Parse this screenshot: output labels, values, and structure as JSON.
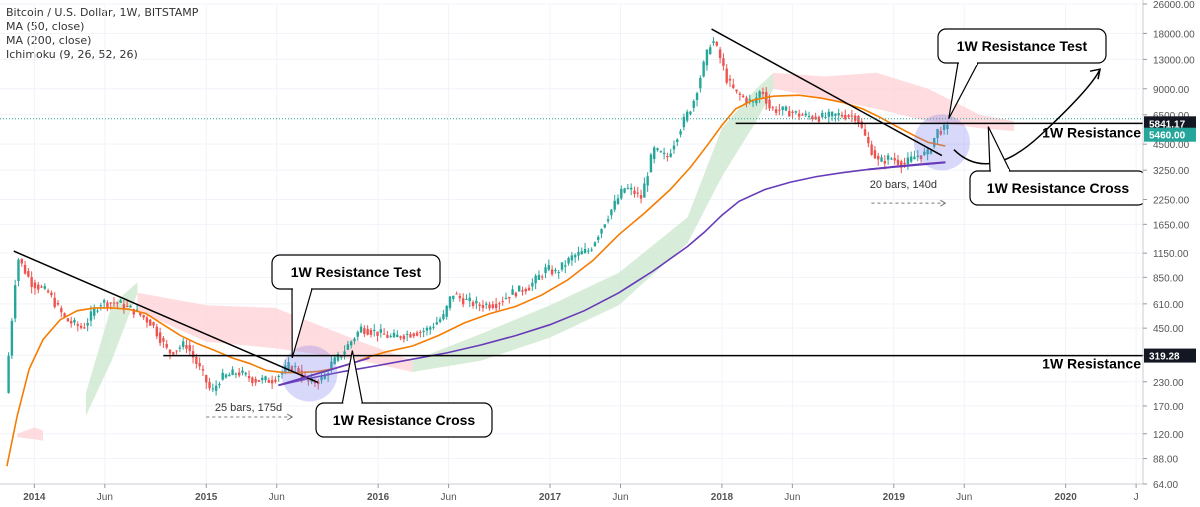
{
  "header": {
    "symbol_line": "Bitcoin / U.S. Dollar, 1W, BITSTAMP",
    "indicators": [
      "MA (50, close)",
      "MA (200, close)",
      "Ichimoku (9, 26, 52, 26)"
    ]
  },
  "colors": {
    "up": "#26a69a",
    "down": "#ef5350",
    "ma50": "#f57c00",
    "ma200": "#673ab7",
    "cloud_bull": "#c8e6c9",
    "cloud_bear": "#ffcdd2",
    "trendline": "#000000",
    "price_tag": "#26a69a",
    "highlight": "#7e7ef0"
  },
  "chart_data": {
    "type": "candlestick",
    "title": "Bitcoin / U.S. Dollar, 1W, BITSTAMP",
    "x_axis": {
      "start": 2013.8,
      "end": 2020.45,
      "ticks": [
        {
          "x": 2014.0,
          "label": "2014",
          "bold": true
        },
        {
          "x": 2014.41,
          "label": "Jun",
          "bold": false
        },
        {
          "x": 2015.0,
          "label": "2015",
          "bold": true
        },
        {
          "x": 2015.41,
          "label": "Jun",
          "bold": false
        },
        {
          "x": 2016.0,
          "label": "2016",
          "bold": true
        },
        {
          "x": 2016.41,
          "label": "Jun",
          "bold": false
        },
        {
          "x": 2017.0,
          "label": "2017",
          "bold": true
        },
        {
          "x": 2017.41,
          "label": "Jun",
          "bold": false
        },
        {
          "x": 2018.0,
          "label": "2018",
          "bold": true
        },
        {
          "x": 2018.41,
          "label": "Jun",
          "bold": false
        },
        {
          "x": 2019.0,
          "label": "2019",
          "bold": true
        },
        {
          "x": 2019.41,
          "label": "Jun",
          "bold": false
        },
        {
          "x": 2020.0,
          "label": "2020",
          "bold": true
        },
        {
          "x": 2020.41,
          "label": "J",
          "bold": false
        }
      ]
    },
    "y_axis": {
      "scale": "log",
      "range": [
        64,
        26000
      ],
      "ticks": [
        {
          "v": 26000,
          "label": "26000.00"
        },
        {
          "v": 18000,
          "label": "18000.00"
        },
        {
          "v": 13000,
          "label": "13000.00"
        },
        {
          "v": 9000,
          "label": "9000.00"
        },
        {
          "v": 6500,
          "label": "6500.00"
        },
        {
          "v": 4500,
          "label": "4500.00"
        },
        {
          "v": 3250,
          "label": "3250.00"
        },
        {
          "v": 2250,
          "label": "2250.00"
        },
        {
          "v": 1650,
          "label": "1650.00"
        },
        {
          "v": 1150,
          "label": "1150.00"
        },
        {
          "v": 850,
          "label": "850.00"
        },
        {
          "v": 610,
          "label": "610.00"
        },
        {
          "v": 450,
          "label": "450.00"
        },
        {
          "v": 320,
          "label": "320.00"
        },
        {
          "v": 230,
          "label": "230.00"
        },
        {
          "v": 170,
          "label": "170.00"
        },
        {
          "v": 120,
          "label": "120.00"
        },
        {
          "v": 88,
          "label": "88.00"
        },
        {
          "v": 64,
          "label": "64.00"
        }
      ]
    },
    "price_path": [
      [
        2013.85,
        200
      ],
      [
        2013.92,
        1100
      ],
      [
        2014.0,
        800
      ],
      [
        2014.1,
        700
      ],
      [
        2014.2,
        500
      ],
      [
        2014.3,
        450
      ],
      [
        2014.4,
        620
      ],
      [
        2014.5,
        620
      ],
      [
        2014.6,
        560
      ],
      [
        2014.7,
        480
      ],
      [
        2014.8,
        330
      ],
      [
        2014.9,
        370
      ],
      [
        2015.0,
        250
      ],
      [
        2015.05,
        200
      ],
      [
        2015.1,
        240
      ],
      [
        2015.2,
        260
      ],
      [
        2015.3,
        235
      ],
      [
        2015.4,
        235
      ],
      [
        2015.5,
        280
      ],
      [
        2015.55,
        270
      ],
      [
        2015.6,
        230
      ],
      [
        2015.65,
        230
      ],
      [
        2015.7,
        240
      ],
      [
        2015.75,
        290
      ],
      [
        2015.8,
        320
      ],
      [
        2015.85,
        370
      ],
      [
        2015.92,
        450
      ],
      [
        2016.0,
        430
      ],
      [
        2016.1,
        400
      ],
      [
        2016.2,
        420
      ],
      [
        2016.3,
        440
      ],
      [
        2016.4,
        520
      ],
      [
        2016.45,
        700
      ],
      [
        2016.5,
        650
      ],
      [
        2016.6,
        600
      ],
      [
        2016.7,
        610
      ],
      [
        2016.8,
        700
      ],
      [
        2016.9,
        760
      ],
      [
        2017.0,
        950
      ],
      [
        2017.05,
        900
      ],
      [
        2017.15,
        1100
      ],
      [
        2017.25,
        1200
      ],
      [
        2017.35,
        1800
      ],
      [
        2017.45,
        2600
      ],
      [
        2017.5,
        2500
      ],
      [
        2017.55,
        2300
      ],
      [
        2017.62,
        4200
      ],
      [
        2017.7,
        3800
      ],
      [
        2017.78,
        5600
      ],
      [
        2017.85,
        7500
      ],
      [
        2017.9,
        11000
      ],
      [
        2017.96,
        17000
      ],
      [
        2018.0,
        14000
      ],
      [
        2018.05,
        10000
      ],
      [
        2018.1,
        8500
      ],
      [
        2018.2,
        7500
      ],
      [
        2018.25,
        9000
      ],
      [
        2018.3,
        7000
      ],
      [
        2018.4,
        6800
      ],
      [
        2018.5,
        6400
      ],
      [
        2018.6,
        6300
      ],
      [
        2018.7,
        6500
      ],
      [
        2018.8,
        6400
      ],
      [
        2018.87,
        4500
      ],
      [
        2018.93,
        3600
      ],
      [
        2019.0,
        3800
      ],
      [
        2019.08,
        3500
      ],
      [
        2019.15,
        3900
      ],
      [
        2019.22,
        4000
      ],
      [
        2019.27,
        5300
      ],
      [
        2019.32,
        5460
      ]
    ],
    "series": [
      {
        "name": "MA (50, close)",
        "color": "#f57c00",
        "points": [
          [
            2013.84,
            80
          ],
          [
            2013.9,
            150
          ],
          [
            2013.97,
            270
          ],
          [
            2014.05,
            390
          ],
          [
            2014.15,
            500
          ],
          [
            2014.25,
            560
          ],
          [
            2014.35,
            580
          ],
          [
            2014.45,
            580
          ],
          [
            2014.55,
            570
          ],
          [
            2014.65,
            540
          ],
          [
            2014.75,
            470
          ],
          [
            2014.85,
            410
          ],
          [
            2014.95,
            370
          ],
          [
            2015.05,
            340
          ],
          [
            2015.15,
            310
          ],
          [
            2015.25,
            290
          ],
          [
            2015.35,
            265
          ],
          [
            2015.45,
            258
          ],
          [
            2015.55,
            258
          ],
          [
            2015.65,
            262
          ],
          [
            2015.75,
            272
          ],
          [
            2015.85,
            290
          ],
          [
            2015.95,
            315
          ],
          [
            2016.05,
            335
          ],
          [
            2016.2,
            360
          ],
          [
            2016.35,
            410
          ],
          [
            2016.5,
            480
          ],
          [
            2016.65,
            540
          ],
          [
            2016.8,
            590
          ],
          [
            2016.95,
            680
          ],
          [
            2017.1,
            820
          ],
          [
            2017.25,
            1050
          ],
          [
            2017.4,
            1450
          ],
          [
            2017.55,
            1900
          ],
          [
            2017.7,
            2550
          ],
          [
            2017.82,
            3400
          ],
          [
            2017.92,
            4500
          ],
          [
            2018.0,
            5700
          ],
          [
            2018.08,
            7000
          ],
          [
            2018.18,
            7800
          ],
          [
            2018.3,
            8200
          ],
          [
            2018.45,
            8300
          ],
          [
            2018.58,
            8000
          ],
          [
            2018.7,
            7600
          ],
          [
            2018.82,
            7000
          ],
          [
            2018.92,
            6300
          ],
          [
            2019.02,
            5600
          ],
          [
            2019.12,
            5000
          ],
          [
            2019.2,
            4600
          ],
          [
            2019.3,
            4400
          ]
        ]
      },
      {
        "name": "MA (200, close)",
        "color": "#673ab7",
        "points": [
          [
            2015.42,
            220
          ],
          [
            2015.6,
            240
          ],
          [
            2015.8,
            262
          ],
          [
            2016.0,
            282
          ],
          [
            2016.2,
            305
          ],
          [
            2016.4,
            330
          ],
          [
            2016.6,
            365
          ],
          [
            2016.8,
            410
          ],
          [
            2017.0,
            470
          ],
          [
            2017.2,
            560
          ],
          [
            2017.4,
            700
          ],
          [
            2017.6,
            920
          ],
          [
            2017.8,
            1250
          ],
          [
            2017.9,
            1500
          ],
          [
            2018.0,
            1850
          ],
          [
            2018.1,
            2200
          ],
          [
            2018.25,
            2550
          ],
          [
            2018.4,
            2800
          ],
          [
            2018.55,
            3000
          ],
          [
            2018.7,
            3150
          ],
          [
            2018.85,
            3280
          ],
          [
            2019.0,
            3400
          ],
          [
            2019.15,
            3500
          ],
          [
            2019.3,
            3600
          ]
        ]
      }
    ],
    "ichimoku_cloud": [
      {
        "kind": "bear",
        "pts": [
          [
            2013.9,
            120
          ],
          [
            2014.0,
            130
          ],
          [
            2014.05,
            125
          ],
          [
            2014.05,
            110
          ],
          [
            2014.0,
            112
          ],
          [
            2013.9,
            115
          ]
        ]
      },
      {
        "kind": "bull",
        "pts": [
          [
            2014.3,
            200
          ],
          [
            2014.45,
            600
          ],
          [
            2014.6,
            800
          ],
          [
            2014.6,
            700
          ],
          [
            2014.45,
            300
          ],
          [
            2014.3,
            150
          ]
        ]
      },
      {
        "kind": "bear",
        "pts": [
          [
            2014.6,
            700
          ],
          [
            2015.0,
            600
          ],
          [
            2015.4,
            580
          ],
          [
            2015.9,
            380
          ],
          [
            2016.2,
            300
          ],
          [
            2016.2,
            260
          ],
          [
            2015.9,
            300
          ],
          [
            2015.4,
            350
          ],
          [
            2015.0,
            380
          ],
          [
            2014.6,
            560
          ]
        ]
      },
      {
        "kind": "bull",
        "pts": [
          [
            2016.2,
            300
          ],
          [
            2016.6,
            420
          ],
          [
            2017.0,
            600
          ],
          [
            2017.4,
            900
          ],
          [
            2017.8,
            1800
          ],
          [
            2018.0,
            5500
          ],
          [
            2018.2,
            9000
          ],
          [
            2018.3,
            11000
          ],
          [
            2018.3,
            9000
          ],
          [
            2018.2,
            6000
          ],
          [
            2018.0,
            3000
          ],
          [
            2017.8,
            1300
          ],
          [
            2017.4,
            600
          ],
          [
            2017.0,
            400
          ],
          [
            2016.6,
            300
          ],
          [
            2016.2,
            260
          ]
        ]
      },
      {
        "kind": "bear",
        "pts": [
          [
            2018.3,
            11000
          ],
          [
            2018.6,
            10500
          ],
          [
            2018.9,
            11000
          ],
          [
            2019.2,
            9000
          ],
          [
            2019.5,
            6500
          ],
          [
            2019.7,
            6000
          ],
          [
            2019.7,
            5300
          ],
          [
            2019.5,
            5500
          ],
          [
            2019.2,
            6000
          ],
          [
            2018.9,
            7000
          ],
          [
            2018.6,
            8000
          ],
          [
            2018.3,
            9000
          ]
        ]
      }
    ],
    "horizontal_levels": [
      {
        "value": 319.28,
        "x_start": 2014.75,
        "label": "1W Resistance",
        "tag": "319.28",
        "tag_style": "dark"
      },
      {
        "value": 5841.17,
        "x_start": 2018.08,
        "label": "1W Resistance",
        "tag": "5841.17",
        "tag_style": "dark"
      }
    ],
    "current_price": {
      "value": 5460,
      "tag": "5460.00"
    },
    "trendlines": [
      {
        "from": [
          2013.88,
          1180
        ],
        "to": [
          2015.65,
          228
        ]
      },
      {
        "from": [
          2017.94,
          19000
        ],
        "to": [
          2019.28,
          3900
        ]
      }
    ],
    "ma200_rising_support": [
      {
        "from": [
          2015.42,
          220
        ],
        "to": [
          2015.95,
          310
        ]
      },
      {
        "from": [
          2018.85,
          3280
        ],
        "to": [
          2019.3,
          3580
        ]
      }
    ],
    "measure_labels": [
      {
        "text": "25 bars, 175d",
        "x": 2015.05,
        "y": 160,
        "arrow_from": 2015.0,
        "arrow_to": 2015.5,
        "arrow_y": 148
      },
      {
        "text": "20 bars, 140d",
        "x": 2018.86,
        "y": 2600,
        "arrow_from": 2018.87,
        "arrow_to": 2019.3,
        "arrow_y": 2150
      }
    ],
    "highlights": [
      {
        "x": 2015.6,
        "y": 255
      },
      {
        "x": 2019.28,
        "y": 4600
      }
    ],
    "callouts": [
      {
        "text": "1W Resistance Test",
        "box_x": 272,
        "box_y": 255,
        "w": 168,
        "h": 34,
        "tip": [
          2015.5,
          310
        ]
      },
      {
        "text": "1W Resistance Cross",
        "box_x": 316,
        "box_y": 403,
        "w": 176,
        "h": 34,
        "tip": [
          2015.85,
          340
        ]
      },
      {
        "text": "1W Resistance Test",
        "box_x": 938,
        "box_y": 29,
        "w": 168,
        "h": 34,
        "tip": [
          2019.32,
          6200
        ]
      },
      {
        "text": "1W Resistance Cross",
        "box_x": 970,
        "box_y": 171,
        "w": 176,
        "h": 34,
        "tip": [
          2019.55,
          5600
        ]
      }
    ],
    "projection_path": [
      [
        2019.35,
        4200
      ],
      [
        2019.55,
        4000
      ],
      [
        2019.85,
        5000
      ],
      [
        2020.05,
        8500
      ],
      [
        2020.2,
        11500
      ]
    ]
  }
}
